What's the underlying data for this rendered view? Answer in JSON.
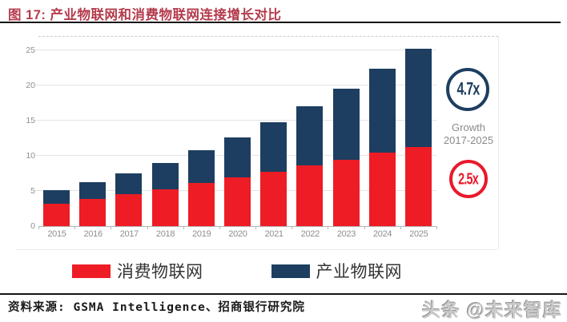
{
  "header": {
    "title": "图 17: 产业物联网和消费物联网连接增长对比"
  },
  "colors": {
    "title_red": "#b43b4c",
    "consumer_red": "#ee1c25",
    "industrial_navy": "#1d3e60",
    "badge_red": "#e9192b",
    "axis_text_gray": "#8e8e8e",
    "caption_gray": "#8a8a8a"
  },
  "chart_data": {
    "type": "bar",
    "stacked": true,
    "title": "",
    "xlabel": "",
    "ylabel": "",
    "ylim": [
      0,
      25
    ],
    "y_ticks": [
      0,
      5,
      10,
      15,
      20,
      25
    ],
    "grid": true,
    "legend_position": "bottom",
    "categories": [
      "2015",
      "2016",
      "2017",
      "2018",
      "2019",
      "2020",
      "2021",
      "2022",
      "2023",
      "2024",
      "2025"
    ],
    "series": [
      {
        "name": "消费物联网",
        "color": "#ee1c25",
        "values": [
          3.2,
          3.9,
          4.5,
          5.2,
          6.1,
          6.9,
          7.7,
          8.6,
          9.4,
          10.4,
          11.2
        ]
      },
      {
        "name": "产业物联网",
        "color": "#1d3e60",
        "values": [
          1.9,
          2.4,
          3.0,
          3.8,
          4.7,
          5.7,
          7.1,
          8.5,
          10.2,
          12.0,
          14.0
        ]
      }
    ],
    "annotations": {
      "industrial_growth": "4.7x",
      "consumer_growth": "2.5x",
      "caption_line1": "Growth",
      "caption_line2": "2017-2025"
    }
  },
  "legend": [
    {
      "label": "消费物联网",
      "color": "#ee1c25"
    },
    {
      "label": "产业物联网",
      "color": "#1d3e60"
    }
  ],
  "footer": {
    "source": "资料来源: GSMA Intelligence、招商银行研究院",
    "watermark": "头条 @未来智库"
  }
}
